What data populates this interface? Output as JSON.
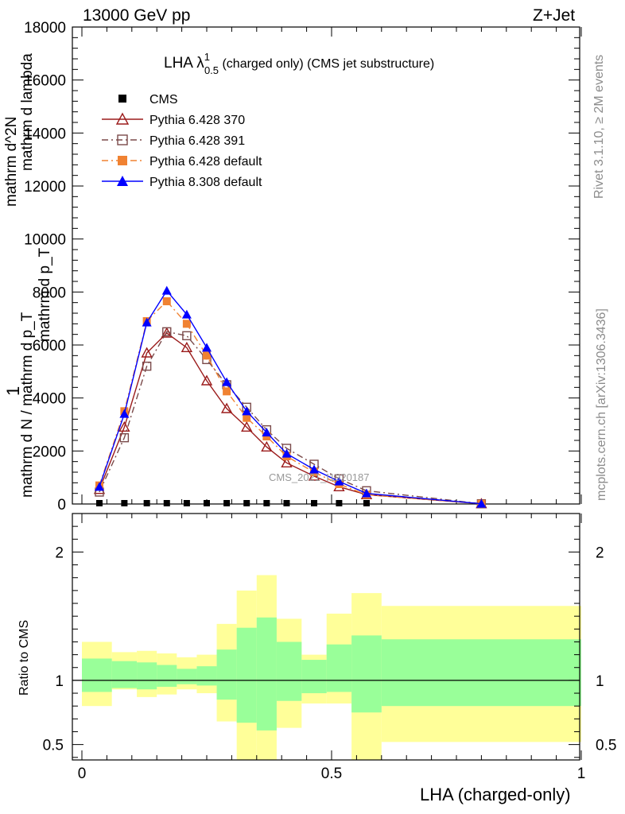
{
  "header": {
    "left": "13000 GeV pp",
    "right": "Z+Jet"
  },
  "side_labels": {
    "top": "Rivet 3.1.10, ≥ 2M events",
    "bottom": "mcplots.cern.ch [arXiv:1306.3436]"
  },
  "watermark": "CMS_2021_I1920187",
  "chart_data": [
    {
      "type": "line",
      "title_main": "LHA λ",
      "title_sup": "1",
      "title_sub": "0.5",
      "title_rest": " (charged only) (CMS jet substructure)",
      "xlabel": "LHA (charged-only)",
      "ylabel_lines": [
        "mathrm d N / mathrm d p_T",
        "mathrm d p_T",
        "mathrm d^2N",
        "mathrm d lambda",
        "1"
      ],
      "xlim": [
        0,
        1
      ],
      "ylim": [
        0,
        18000
      ],
      "y_ticks": [
        0,
        2000,
        4000,
        6000,
        8000,
        10000,
        12000,
        14000,
        16000,
        18000
      ],
      "y_tick_labels": [
        "0",
        "2000",
        "4000",
        "6000",
        "8000",
        "10000",
        "12000",
        "14000",
        "16000",
        "18000"
      ],
      "x_ticks": [
        0,
        0.5,
        1
      ],
      "x_tick_labels": [
        "0",
        "0.5",
        "1"
      ],
      "series": [
        {
          "name": "CMS",
          "color": "#000000",
          "marker": "square-filled",
          "dash": "none",
          "x": [
            0.035,
            0.085,
            0.13,
            0.17,
            0.21,
            0.25,
            0.29,
            0.33,
            0.37,
            0.41,
            0.465,
            0.515,
            0.57
          ],
          "values": [
            30,
            30,
            30,
            30,
            30,
            30,
            30,
            30,
            30,
            30,
            30,
            30,
            30
          ]
        },
        {
          "name": "Pythia 6.428 370",
          "color": "#9b1b1b",
          "marker": "triangle-open",
          "dash": "none",
          "x": [
            0.035,
            0.085,
            0.13,
            0.17,
            0.21,
            0.25,
            0.29,
            0.33,
            0.37,
            0.41,
            0.465,
            0.515,
            0.57,
            0.8
          ],
          "values": [
            550,
            2900,
            5700,
            6450,
            5900,
            4650,
            3600,
            2900,
            2150,
            1550,
            1050,
            650,
            350,
            10
          ]
        },
        {
          "name": "Pythia 6.428 391",
          "color": "#7a4a4a",
          "marker": "square-open",
          "dash": "dashdot",
          "x": [
            0.035,
            0.085,
            0.13,
            0.17,
            0.21,
            0.25,
            0.29,
            0.33,
            0.37,
            0.41,
            0.465,
            0.515,
            0.57,
            0.8
          ],
          "values": [
            450,
            2500,
            5200,
            6500,
            6350,
            5450,
            4500,
            3650,
            2800,
            2100,
            1500,
            950,
            500,
            10
          ]
        },
        {
          "name": "Pythia 6.428 default",
          "color": "#f08232",
          "marker": "square-filled",
          "dash": "dashdot",
          "x": [
            0.035,
            0.085,
            0.13,
            0.17,
            0.21,
            0.25,
            0.29,
            0.33,
            0.37,
            0.41,
            0.465,
            0.515,
            0.57,
            0.8
          ],
          "values": [
            700,
            3500,
            6900,
            7650,
            6800,
            5600,
            4250,
            3250,
            2550,
            1800,
            1200,
            750,
            350,
            10
          ]
        },
        {
          "name": "Pythia 8.308 default",
          "color": "#0000ff",
          "marker": "triangle-filled",
          "dash": "none",
          "x": [
            0.035,
            0.085,
            0.13,
            0.17,
            0.21,
            0.25,
            0.29,
            0.33,
            0.37,
            0.41,
            0.465,
            0.515,
            0.57,
            0.8
          ],
          "values": [
            650,
            3400,
            6850,
            8050,
            7150,
            5900,
            4600,
            3500,
            2700,
            1900,
            1300,
            850,
            400,
            10
          ]
        }
      ]
    },
    {
      "type": "area",
      "ylabel": "Ratio to CMS",
      "ylim": [
        0.38,
        2.3
      ],
      "y_ticks": [
        0.5,
        1,
        2
      ],
      "y_tick_labels": [
        "0.5",
        "1",
        "2"
      ],
      "x_ticks": [
        0,
        0.5,
        1
      ],
      "x_tick_labels": [
        "0",
        "0.5",
        "1"
      ],
      "reference": 1,
      "bins": [
        {
          "lo": 0.0,
          "hi": 0.06,
          "yellow": [
            0.8,
            1.3
          ],
          "green": [
            0.91,
            1.17
          ]
        },
        {
          "lo": 0.06,
          "hi": 0.11,
          "yellow": [
            0.93,
            1.22
          ],
          "green": [
            0.94,
            1.15
          ]
        },
        {
          "lo": 0.11,
          "hi": 0.15,
          "yellow": [
            0.87,
            1.23
          ],
          "green": [
            0.93,
            1.14
          ]
        },
        {
          "lo": 0.15,
          "hi": 0.19,
          "yellow": [
            0.89,
            1.21
          ],
          "green": [
            0.95,
            1.12
          ]
        },
        {
          "lo": 0.19,
          "hi": 0.23,
          "yellow": [
            0.93,
            1.18
          ],
          "green": [
            0.97,
            1.09
          ]
        },
        {
          "lo": 0.23,
          "hi": 0.27,
          "yellow": [
            0.9,
            1.2
          ],
          "green": [
            0.96,
            1.11
          ]
        },
        {
          "lo": 0.27,
          "hi": 0.31,
          "yellow": [
            0.68,
            1.44
          ],
          "green": [
            0.85,
            1.24
          ]
        },
        {
          "lo": 0.31,
          "hi": 0.35,
          "yellow": [
            0.3,
            1.7
          ],
          "green": [
            0.67,
            1.41
          ]
        },
        {
          "lo": 0.35,
          "hi": 0.39,
          "yellow": [
            0.3,
            1.82
          ],
          "green": [
            0.61,
            1.49
          ]
        },
        {
          "lo": 0.39,
          "hi": 0.44,
          "yellow": [
            0.63,
            1.48
          ],
          "green": [
            0.84,
            1.3
          ]
        },
        {
          "lo": 0.44,
          "hi": 0.49,
          "yellow": [
            0.82,
            1.2
          ],
          "green": [
            0.9,
            1.16
          ]
        },
        {
          "lo": 0.49,
          "hi": 0.54,
          "yellow": [
            0.82,
            1.52
          ],
          "green": [
            0.91,
            1.28
          ]
        },
        {
          "lo": 0.54,
          "hi": 0.6,
          "yellow": [
            0.3,
            1.68
          ],
          "green": [
            0.75,
            1.35
          ]
        },
        {
          "lo": 0.6,
          "hi": 1.0,
          "yellow": [
            0.52,
            1.58
          ],
          "green": [
            0.8,
            1.32
          ]
        }
      ]
    }
  ]
}
